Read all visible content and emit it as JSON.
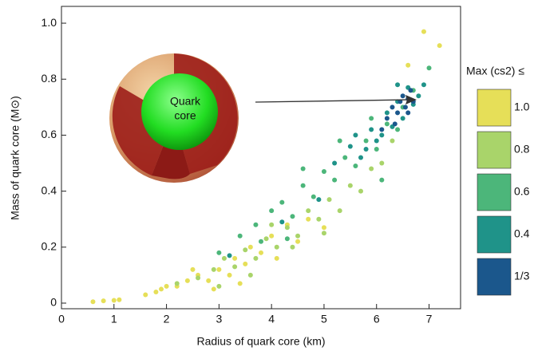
{
  "chart_data": {
    "type": "scatter",
    "x_label": "Radius of quark core (km)",
    "y_label": "Mass of quark core (M⊙)",
    "legend_title": "Max (cs2) ≤",
    "annotation": [
      "Quark",
      "core"
    ],
    "xlim": [
      0,
      7.6
    ],
    "ylim": [
      -0.02,
      1.06
    ],
    "xticks": [
      0,
      1,
      2,
      3,
      4,
      5,
      6,
      7
    ],
    "yticks": [
      0,
      0.2,
      0.4,
      0.6,
      0.8,
      {
        "value": 1,
        "label": "1.0"
      }
    ],
    "legend": "right",
    "series": [
      {
        "name": "1.0",
        "color": "#e6df58",
        "x": [
          0.6,
          0.8,
          1.0,
          1.1,
          1.6,
          1.8,
          2.0,
          2.2,
          2.4,
          2.6,
          2.8,
          3.0,
          3.2,
          3.3,
          3.5,
          3.6,
          3.8,
          4.0,
          4.1,
          4.3,
          4.5,
          4.7,
          5.0,
          2.9,
          3.4,
          6.9,
          7.2,
          6.6,
          1.9,
          2.5
        ],
        "values": [
          0.005,
          0.008,
          0.01,
          0.012,
          0.03,
          0.04,
          0.06,
          0.06,
          0.08,
          0.1,
          0.08,
          0.12,
          0.1,
          0.16,
          0.14,
          0.2,
          0.18,
          0.24,
          0.16,
          0.28,
          0.22,
          0.3,
          0.27,
          0.05,
          0.07,
          0.97,
          0.92,
          0.85,
          0.05,
          0.12
        ]
      },
      {
        "name": "0.8",
        "color": "#a9d46a",
        "x": [
          2.2,
          2.6,
          2.9,
          3.1,
          3.3,
          3.5,
          3.7,
          3.9,
          4.1,
          4.3,
          4.5,
          4.7,
          4.9,
          5.1,
          5.3,
          5.5,
          5.7,
          5.9,
          6.1,
          4.0,
          3.6,
          3.0,
          4.4,
          5.0,
          6.3
        ],
        "values": [
          0.07,
          0.09,
          0.12,
          0.16,
          0.13,
          0.19,
          0.16,
          0.23,
          0.2,
          0.27,
          0.24,
          0.33,
          0.3,
          0.37,
          0.33,
          0.42,
          0.4,
          0.48,
          0.5,
          0.28,
          0.1,
          0.06,
          0.2,
          0.25,
          0.58
        ]
      },
      {
        "name": "0.6",
        "color": "#4cb67a",
        "x": [
          3.0,
          3.4,
          3.7,
          4.0,
          4.2,
          4.4,
          4.6,
          4.8,
          5.0,
          5.2,
          5.4,
          5.6,
          5.8,
          6.0,
          6.2,
          6.4,
          6.5,
          4.6,
          5.3,
          6.7,
          7.0,
          3.8,
          5.9,
          4.3,
          6.1
        ],
        "values": [
          0.18,
          0.24,
          0.28,
          0.33,
          0.36,
          0.31,
          0.42,
          0.38,
          0.47,
          0.44,
          0.52,
          0.49,
          0.58,
          0.55,
          0.64,
          0.62,
          0.7,
          0.48,
          0.58,
          0.76,
          0.84,
          0.22,
          0.66,
          0.23,
          0.44
        ]
      },
      {
        "name": "0.4",
        "color": "#1f9389",
        "x": [
          5.2,
          5.5,
          5.7,
          5.9,
          6.0,
          6.2,
          6.3,
          6.4,
          6.5,
          6.6,
          6.7,
          6.8,
          6.1,
          5.8,
          4.9,
          4.2,
          3.2,
          6.4,
          5.6,
          6.9
        ],
        "values": [
          0.5,
          0.56,
          0.52,
          0.62,
          0.58,
          0.68,
          0.63,
          0.72,
          0.66,
          0.77,
          0.71,
          0.74,
          0.6,
          0.55,
          0.37,
          0.29,
          0.17,
          0.78,
          0.6,
          0.78
        ]
      },
      {
        "name": "1/3",
        "color": "#1b578c",
        "x": [
          6.2,
          6.3,
          6.4,
          6.5,
          6.55,
          6.6,
          6.65,
          6.7,
          6.45,
          6.35,
          6.6,
          6.1
        ],
        "values": [
          0.66,
          0.7,
          0.68,
          0.74,
          0.7,
          0.73,
          0.76,
          0.72,
          0.72,
          0.64,
          0.68,
          0.62
        ]
      }
    ]
  }
}
